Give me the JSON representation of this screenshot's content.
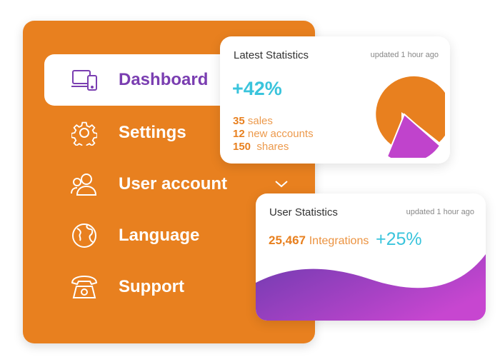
{
  "menu": {
    "items": [
      {
        "label": "Dashboard",
        "icon": "devices-icon",
        "active": true
      },
      {
        "label": "Settings",
        "icon": "gear-icon"
      },
      {
        "label": "User account",
        "icon": "users-icon"
      },
      {
        "label": "Language",
        "icon": "globe-icon"
      },
      {
        "label": "Support",
        "icon": "phone-icon"
      }
    ]
  },
  "latest": {
    "title": "Latest Statistics",
    "updated": "updated 1 hour ago",
    "change": "+42%",
    "stats": [
      {
        "value": "35",
        "label": "sales"
      },
      {
        "value": "12",
        "label": "new accounts"
      },
      {
        "value": "150",
        "label": "shares"
      }
    ],
    "pie": {
      "slices": [
        {
          "value": 75,
          "color": "#e8801f"
        },
        {
          "value": 25,
          "color": "#c043cc"
        }
      ]
    }
  },
  "user": {
    "title": "User Statistics",
    "updated": "updated 1 hour ago",
    "value": "25,467",
    "label": "Integrations",
    "change": "+25%"
  },
  "colors": {
    "orange": "#e8801f",
    "purple": "#7a3eb1",
    "magenta": "#c043cc",
    "cyan": "#3ac4dc"
  }
}
